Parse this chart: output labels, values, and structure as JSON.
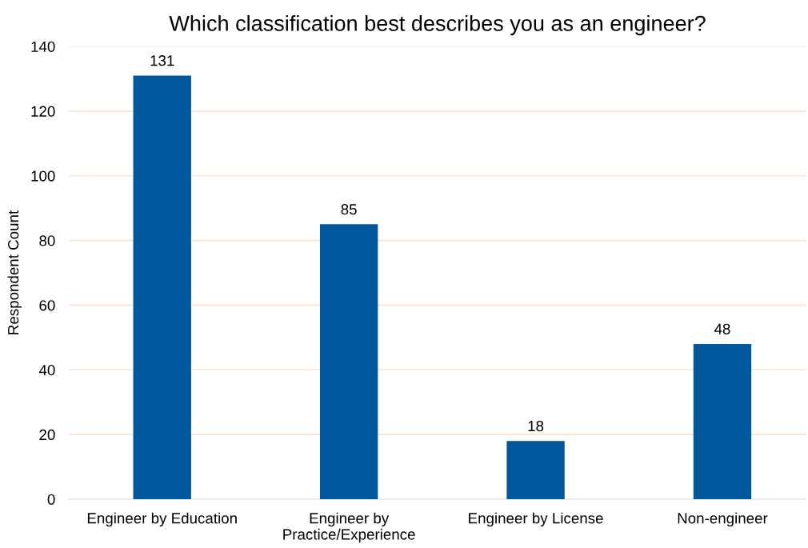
{
  "chart_data": {
    "type": "bar",
    "title": "Which classification best describes you as an engineer?",
    "ylabel": "Respondent Count",
    "categories": [
      "Engineer by Education",
      "Engineer by\nPractice/Experience",
      "Engineer by License",
      "Non-engineer"
    ],
    "values": [
      131,
      85,
      18,
      48
    ],
    "color": "#00579c",
    "ylim": [
      0,
      140
    ],
    "yticks": [
      0,
      20,
      40,
      60,
      80,
      100,
      120,
      140
    ],
    "grid": "y",
    "data_labels": true,
    "legend": false
  }
}
